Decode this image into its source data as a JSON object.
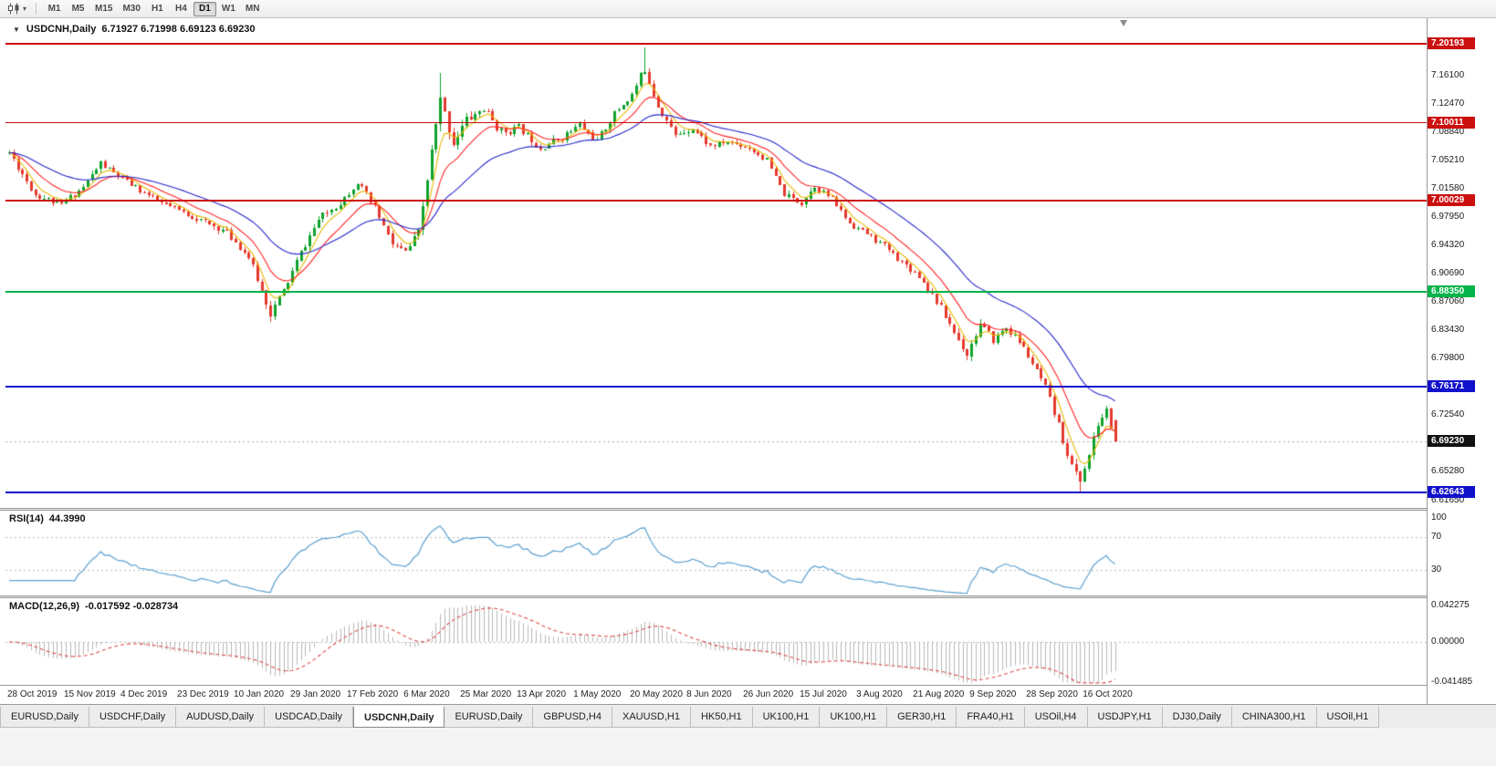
{
  "glyphs": {
    "caret": "▾",
    "collapse": "▼"
  },
  "toolbar": {
    "chart_button_icon": "candlestick-chart-icon",
    "dropdown_icon": "chevron-down-icon",
    "timeframes": [
      "M1",
      "M5",
      "M15",
      "M30",
      "H1",
      "H4",
      "D1",
      "W1",
      "MN"
    ],
    "active_timeframe": "D1"
  },
  "main_chart": {
    "title": "USDCNH,Daily",
    "ohlc": "6.71927 6.71998 6.69123 6.69230"
  },
  "indicators_titles": {
    "rsi_name": "RSI(14)",
    "rsi_value": "44.3990",
    "macd_name": "MACD(12,26,9)",
    "macd_values": "-0.017592 -0.028734"
  },
  "tabs": {
    "active_index": 4,
    "items": [
      "EURUSD,Daily",
      "USDCHF,Daily",
      "AUDUSD,Daily",
      "USDCAD,Daily",
      "USDCNH,Daily",
      "EURUSD,Daily",
      "GBPUSD,H4",
      "XAUUSD,H1",
      "HK50,H1",
      "UK100,H1",
      "UK100,H1",
      "GER30,H1",
      "FRA40,H1",
      "USOil,H4",
      "USDJPY,H1",
      "DJ30,Daily",
      "CHINA300,H1",
      "USOil,H1"
    ],
    "active_item": "USDCNH,Daily"
  },
  "chart_data": {
    "type": "candlestick",
    "symbol": "USDCNH",
    "period": "Daily",
    "ohlc_current": {
      "open": 6.71927,
      "high": 6.71998,
      "low": 6.69123,
      "close": 6.6923
    },
    "y_range": [
      6.6066,
      7.2318
    ],
    "price_axis_labels": [
      "7.16100",
      "7.12470",
      "7.08840",
      "7.05210",
      "7.01580",
      "6.97950",
      "6.94320",
      "6.90690",
      "6.87060",
      "6.83430",
      "6.79800",
      "6.76170",
      "6.72540",
      "6.68910",
      "6.65280",
      "6.61650"
    ],
    "x_labels": [
      "28 Oct 2019",
      "15 Nov 2019",
      "4 Dec 2019",
      "23 Dec 2019",
      "10 Jan 2020",
      "29 Jan 2020",
      "17 Feb 2020",
      "6 Mar 2020",
      "25 Mar 2020",
      "13 Apr 2020",
      "1 May 2020",
      "20 May 2020",
      "8 Jun 2020",
      "26 Jun 2020",
      "15 Jul 2020",
      "3 Aug 2020",
      "21 Aug 2020",
      "9 Sep 2020",
      "28 Sep 2020",
      "16 Oct 2020"
    ],
    "candles_per_x_label": 13,
    "count": 255,
    "seed": 11,
    "up_color": "#0fa32b",
    "down_color": "#e6392e",
    "trend_anchors": [
      [
        0,
        7.062,
        0.01
      ],
      [
        6,
        7.008,
        0.01
      ],
      [
        12,
        6.995,
        0.009
      ],
      [
        17,
        7.018,
        0.009
      ],
      [
        21,
        7.048,
        0.01
      ],
      [
        26,
        7.028,
        0.008
      ],
      [
        34,
        7.0,
        0.008
      ],
      [
        42,
        6.98,
        0.008
      ],
      [
        50,
        6.96,
        0.009
      ],
      [
        55,
        6.928,
        0.01
      ],
      [
        60,
        6.856,
        0.012
      ],
      [
        63,
        6.884,
        0.012
      ],
      [
        67,
        6.934,
        0.011
      ],
      [
        71,
        6.976,
        0.01
      ],
      [
        76,
        6.998,
        0.009
      ],
      [
        80,
        7.024,
        0.009
      ],
      [
        84,
        6.99,
        0.01
      ],
      [
        88,
        6.944,
        0.011
      ],
      [
        91,
        6.934,
        0.011
      ],
      [
        94,
        6.958,
        0.013
      ],
      [
        97,
        7.062,
        0.018
      ],
      [
        99,
        7.128,
        0.02
      ],
      [
        102,
        7.076,
        0.018
      ],
      [
        105,
        7.104,
        0.016
      ],
      [
        109,
        7.118,
        0.014
      ],
      [
        113,
        7.088,
        0.012
      ],
      [
        117,
        7.094,
        0.01
      ],
      [
        122,
        7.068,
        0.01
      ],
      [
        127,
        7.082,
        0.01
      ],
      [
        131,
        7.098,
        0.01
      ],
      [
        135,
        7.076,
        0.01
      ],
      [
        139,
        7.112,
        0.01
      ],
      [
        143,
        7.136,
        0.011
      ],
      [
        146,
        7.17,
        0.013
      ],
      [
        149,
        7.122,
        0.012
      ],
      [
        153,
        7.084,
        0.01
      ],
      [
        157,
        7.094,
        0.009
      ],
      [
        161,
        7.07,
        0.009
      ],
      [
        165,
        7.076,
        0.008
      ],
      [
        170,
        7.068,
        0.008
      ],
      [
        174,
        7.052,
        0.008
      ],
      [
        178,
        7.008,
        0.009
      ],
      [
        182,
        6.998,
        0.009
      ],
      [
        185,
        7.02,
        0.009
      ],
      [
        189,
        7.002,
        0.008
      ],
      [
        193,
        6.972,
        0.008
      ],
      [
        197,
        6.958,
        0.008
      ],
      [
        201,
        6.942,
        0.008
      ],
      [
        205,
        6.922,
        0.008
      ],
      [
        209,
        6.904,
        0.009
      ],
      [
        213,
        6.872,
        0.01
      ],
      [
        217,
        6.832,
        0.011
      ],
      [
        220,
        6.804,
        0.012
      ],
      [
        223,
        6.842,
        0.011
      ],
      [
        226,
        6.822,
        0.01
      ],
      [
        229,
        6.838,
        0.01
      ],
      [
        232,
        6.82,
        0.009
      ],
      [
        235,
        6.792,
        0.01
      ],
      [
        238,
        6.76,
        0.01
      ],
      [
        241,
        6.712,
        0.012
      ],
      [
        244,
        6.66,
        0.013
      ],
      [
        246,
        6.642,
        0.012
      ],
      [
        248,
        6.674,
        0.012
      ],
      [
        250,
        6.714,
        0.011
      ],
      [
        252,
        6.732,
        0.01
      ],
      [
        253,
        6.71,
        0.009
      ],
      [
        254,
        6.6923,
        0.008
      ]
    ],
    "pins": [
      {
        "i": 60,
        "l": 6.8448
      },
      {
        "i": 99,
        "h": 7.164
      },
      {
        "i": 146,
        "h": 7.1962
      },
      {
        "i": 220,
        "l": 6.7958
      },
      {
        "i": 246,
        "l": 6.6268
      }
    ],
    "hlines": [
      {
        "price": 7.20193,
        "label": "7.20193",
        "color": "#cc0f0f",
        "width": 2,
        "kind": "resistance"
      },
      {
        "price": 7.10011,
        "label": "7.10011",
        "color": "#cc0f0f",
        "width": 1,
        "kind": "resistance"
      },
      {
        "price": 7.00029,
        "label": "7.00029",
        "color": "#cc0f0f",
        "width": 2,
        "kind": "resistance"
      },
      {
        "price": 6.8835,
        "label": "6.88350",
        "color": "#00b44a",
        "width": 2,
        "kind": "level"
      },
      {
        "price": 6.76171,
        "label": "6.76171",
        "color": "#1111cc",
        "width": 2,
        "kind": "support"
      },
      {
        "price": 6.62643,
        "label": "6.62643",
        "color": "#1111cc",
        "width": 2,
        "kind": "support"
      }
    ],
    "current_price": {
      "value": 6.6923,
      "label": "6.69230",
      "badge_color": "#111111"
    },
    "moving_averages": [
      {
        "name": "fast-ma",
        "period": 5,
        "color": "#e6b800"
      },
      {
        "name": "medium-ma",
        "period": 12,
        "color": "#ff2222"
      },
      {
        "name": "slow-ma",
        "period": 30,
        "color": "#2626cc"
      }
    ],
    "rsi": {
      "period": 14,
      "current": 44.399,
      "color": "#5ba0d0",
      "levels": [
        70,
        30
      ],
      "range": [
        0,
        100
      ],
      "axis_labels": [
        {
          "text": "100",
          "value": 100
        },
        {
          "text": "70",
          "value": 70
        },
        {
          "text": "30",
          "value": 30
        }
      ]
    },
    "macd": {
      "fast": 12,
      "slow": 26,
      "signal": 9,
      "current_main": -0.017592,
      "current_signal": -0.028734,
      "hist_color": "#b9b9b9",
      "signal_color": "#dd4b4b",
      "range": [
        -0.041485,
        0.042275
      ],
      "axis_labels": [
        {
          "text": "0.042275",
          "value": 0.042275
        },
        {
          "text": "0.00000",
          "value": 0
        },
        {
          "text": "-0.041485",
          "value": -0.041485
        }
      ]
    }
  }
}
